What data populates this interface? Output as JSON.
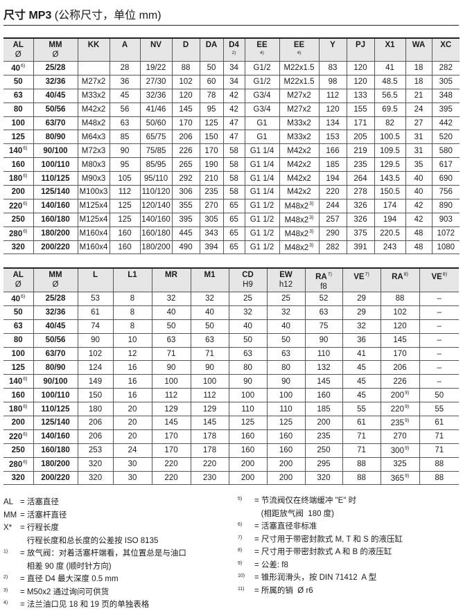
{
  "title": {
    "bold": "尺寸 MP3",
    "rest": " (公称尺寸，单位 mm)"
  },
  "table1": {
    "headers": [
      [
        "AL",
        "Ø",
        ""
      ],
      [
        "MM",
        "Ø",
        ""
      ],
      [
        "KK",
        "",
        ""
      ],
      [
        "A",
        "",
        ""
      ],
      [
        "NV",
        "",
        ""
      ],
      [
        "D",
        "",
        ""
      ],
      [
        "DA",
        "",
        ""
      ],
      [
        "D4",
        "",
        "2)"
      ],
      [
        "EE",
        "",
        "4)"
      ],
      [
        "EE",
        "",
        "4)"
      ],
      [
        "Y",
        "",
        ""
      ],
      [
        "PJ",
        "",
        ""
      ],
      [
        "X1",
        "",
        ""
      ],
      [
        "WA",
        "",
        ""
      ],
      [
        "XC",
        "",
        ""
      ]
    ],
    "rows": [
      [
        [
          "40",
          "6)"
        ],
        "25/28",
        "",
        "28",
        "19/22",
        "88",
        "50",
        "34",
        "G1/2",
        "M22x1.5",
        "83",
        "120",
        "41",
        "18",
        "282"
      ],
      [
        "50",
        "32/36",
        "M27x2",
        "36",
        "27/30",
        "102",
        "60",
        "34",
        "G1/2",
        "M22x1.5",
        "98",
        "120",
        "48.5",
        "18",
        "305"
      ],
      [
        "63",
        "40/45",
        "M33x2",
        "45",
        "32/36",
        "120",
        "78",
        "42",
        "G3/4",
        "M27x2",
        "112",
        "133",
        "56.5",
        "21",
        "348"
      ],
      [
        "80",
        "50/56",
        "M42x2",
        "56",
        "41/46",
        "145",
        "95",
        "42",
        "G3/4",
        "M27x2",
        "120",
        "155",
        "69.5",
        "24",
        "395"
      ],
      [
        "100",
        "63/70",
        "M48x2",
        "63",
        "50/60",
        "170",
        "125",
        "47",
        "G1",
        "M33x2",
        "134",
        "171",
        "82",
        "27",
        "442"
      ],
      [
        "125",
        "80/90",
        "M64x3",
        "85",
        "65/75",
        "206",
        "150",
        "47",
        "G1",
        "M33x2",
        "153",
        "205",
        "100.5",
        "31",
        "520"
      ],
      [
        [
          "140",
          "6)"
        ],
        "90/100",
        "M72x3",
        "90",
        "75/85",
        "226",
        "170",
        "58",
        "G1 1/4",
        "M42x2",
        "166",
        "219",
        "109.5",
        "31",
        "580"
      ],
      [
        "160",
        "100/110",
        "M80x3",
        "95",
        "85/95",
        "265",
        "190",
        "58",
        "G1 1/4",
        "M42x2",
        "185",
        "235",
        "129.5",
        "35",
        "617"
      ],
      [
        [
          "180",
          "6)"
        ],
        "110/125",
        "M90x3",
        "105",
        "95/110",
        "292",
        "210",
        "58",
        "G1 1/4",
        "M42x2",
        "194",
        "264",
        "143.5",
        "40",
        "690"
      ],
      [
        "200",
        "125/140",
        "M100x3",
        "112",
        "110/120",
        "306",
        "235",
        "58",
        "G1 1/4",
        "M42x2",
        "220",
        "278",
        "150.5",
        "40",
        "756"
      ],
      [
        [
          "220",
          "6)"
        ],
        "140/160",
        "M125x4",
        "125",
        "120/140",
        "355",
        "270",
        "65",
        "G1 1/2",
        [
          "M48x2",
          "3)"
        ],
        "244",
        "326",
        "174",
        "42",
        "890"
      ],
      [
        "250",
        "160/180",
        "M125x4",
        "125",
        "140/160",
        "395",
        "305",
        "65",
        "G1 1/2",
        [
          "M48x2",
          "3)"
        ],
        "257",
        "326",
        "194",
        "42",
        "903"
      ],
      [
        [
          "280",
          "6)"
        ],
        "180/200",
        "M160x4",
        "160",
        "160/180",
        "445",
        "343",
        "65",
        "G1 1/2",
        [
          "M48x2",
          "3)"
        ],
        "290",
        "375",
        "220.5",
        "48",
        "1072"
      ],
      [
        "320",
        "200/220",
        "M160x4",
        "160",
        "180/200",
        "490",
        "394",
        "65",
        "G1 1/2",
        [
          "M48x2",
          "3)"
        ],
        "282",
        "391",
        "243",
        "48",
        "1080"
      ]
    ]
  },
  "table2": {
    "headers": [
      [
        "AL",
        "Ø",
        ""
      ],
      [
        "MM",
        "Ø",
        ""
      ],
      [
        "L",
        "",
        ""
      ],
      [
        "L1",
        "",
        ""
      ],
      [
        "MR",
        "",
        ""
      ],
      [
        "M1",
        "",
        ""
      ],
      [
        "CD",
        "H9",
        ""
      ],
      [
        "EW",
        "h12",
        ""
      ],
      [
        "RA",
        "f8",
        "7)"
      ],
      [
        "VE",
        "",
        "7)"
      ],
      [
        "RA",
        "",
        "8)"
      ],
      [
        "VE",
        "",
        "8)"
      ]
    ],
    "rows": [
      [
        [
          "40",
          "6)"
        ],
        "25/28",
        "53",
        "8",
        "32",
        "32",
        "25",
        "25",
        "52",
        "29",
        "88",
        "–"
      ],
      [
        "50",
        "32/36",
        "61",
        "8",
        "40",
        "40",
        "32",
        "32",
        "63",
        "29",
        "102",
        "–"
      ],
      [
        "63",
        "40/45",
        "74",
        "8",
        "50",
        "50",
        "40",
        "40",
        "75",
        "32",
        "120",
        "–"
      ],
      [
        "80",
        "50/56",
        "90",
        "10",
        "63",
        "63",
        "50",
        "50",
        "90",
        "36",
        "145",
        "–"
      ],
      [
        "100",
        "63/70",
        "102",
        "12",
        "71",
        "71",
        "63",
        "63",
        "110",
        "41",
        "170",
        "–"
      ],
      [
        "125",
        "80/90",
        "124",
        "16",
        "90",
        "90",
        "80",
        "80",
        "132",
        "45",
        "206",
        "–"
      ],
      [
        [
          "140",
          "6)"
        ],
        "90/100",
        "149",
        "16",
        "100",
        "100",
        "90",
        "90",
        "145",
        "45",
        "226",
        "–"
      ],
      [
        "160",
        "100/110",
        "150",
        "16",
        "112",
        "112",
        "100",
        "100",
        "160",
        "45",
        [
          "200",
          "9)"
        ],
        "50"
      ],
      [
        [
          "180",
          "6)"
        ],
        "110/125",
        "180",
        "20",
        "129",
        "129",
        "110",
        "110",
        "185",
        "55",
        [
          "220",
          "9)"
        ],
        "55"
      ],
      [
        "200",
        "125/140",
        "206",
        "20",
        "145",
        "145",
        "125",
        "125",
        "200",
        "61",
        [
          "235",
          "9)"
        ],
        "61"
      ],
      [
        [
          "220",
          "6)"
        ],
        "140/160",
        "206",
        "20",
        "170",
        "178",
        "160",
        "160",
        "235",
        "71",
        "270",
        "71"
      ],
      [
        "250",
        "160/180",
        "253",
        "24",
        "170",
        "178",
        "160",
        "160",
        "250",
        "71",
        [
          "300",
          "9)"
        ],
        "71"
      ],
      [
        [
          "280",
          "6)"
        ],
        "180/200",
        "320",
        "30",
        "220",
        "220",
        "200",
        "200",
        "295",
        "88",
        "325",
        "88"
      ],
      [
        "320",
        "200/220",
        "320",
        "30",
        "220",
        "230",
        "200",
        "200",
        "320",
        "88",
        [
          "365",
          "9)"
        ],
        "88"
      ]
    ]
  },
  "notes_left": [
    {
      "k": "AL",
      "v": "= 活塞直径"
    },
    {
      "k": "MM",
      "v": "= 活塞杆直径"
    },
    {
      "k": "X*",
      "v": "= 行程长度\n   行程长度和总长度的公差按 ISO 8135"
    },
    {
      "k": "1)",
      "v": "= 放气阀：对着活塞杆端看，其位置总是与油口\n   相差 90 度 (顺时针方向)"
    },
    {
      "k": "2)",
      "v": "= 直径 D4 最大深度 0.5 mm"
    },
    {
      "k": "3)",
      "v": "= M50x2 通过询问可供货"
    },
    {
      "k": "4)",
      "v": "= 法兰油口见 18 和 19 页的单独表格"
    }
  ],
  "notes_right": [
    {
      "k": "5)",
      "v": "= 节流阀仅在终端缓冲 \"E\" 时\n   (相距放气阀  180 度)"
    },
    {
      "k": "6)",
      "v": "= 活塞直径非标准"
    },
    {
      "k": "7)",
      "v": "= 尺寸用于带密封款式 M, T 和 S 的液压缸"
    },
    {
      "k": "8)",
      "v": "= 尺寸用于带密封款式 A 和 B 的液压缸"
    },
    {
      "k": "9)",
      "v": "= 公差: f8"
    },
    {
      "k": "10)",
      "v": "= 锥形润滑头，按 DIN 71412  A 型"
    },
    {
      "k": "11)",
      "v": "= 所属的销  Ø r6"
    }
  ]
}
